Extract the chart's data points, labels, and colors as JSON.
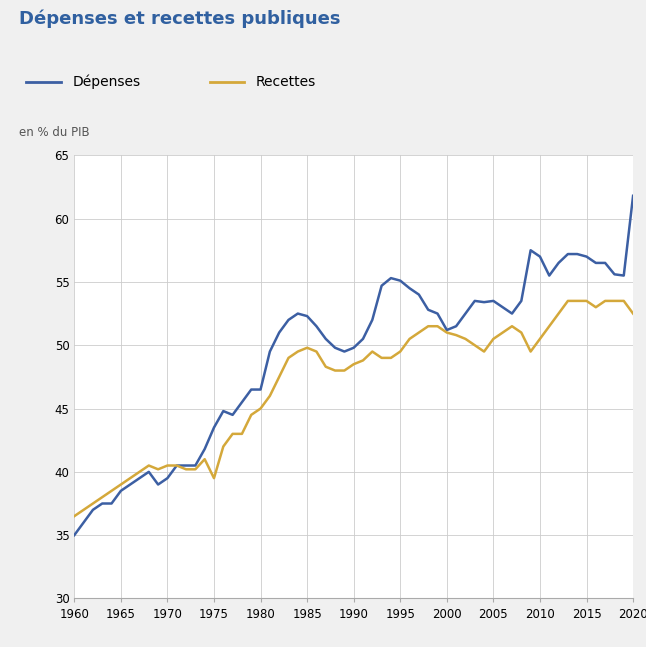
{
  "title": "Dépenses et recettes publiques",
  "unit_label": "en % du PIB",
  "background_color": "#f0f0f0",
  "plot_bg_color": "#ffffff",
  "title_color": "#3060a0",
  "title_fontsize": 13,
  "ylim": [
    30,
    65
  ],
  "xlim": [
    1960,
    2020
  ],
  "yticks": [
    30,
    35,
    40,
    45,
    50,
    55,
    60,
    65
  ],
  "xticks": [
    1960,
    1965,
    1970,
    1975,
    1980,
    1985,
    1990,
    1995,
    2000,
    2005,
    2010,
    2015,
    2020
  ],
  "depenses_color": "#3c5fa3",
  "recettes_color": "#d4a83a",
  "depenses_label": "Dépenses",
  "recettes_label": "Recettes",
  "depenses": {
    "years": [
      1960,
      1961,
      1962,
      1963,
      1964,
      1965,
      1966,
      1967,
      1968,
      1969,
      1970,
      1971,
      1972,
      1973,
      1974,
      1975,
      1976,
      1977,
      1978,
      1979,
      1980,
      1981,
      1982,
      1983,
      1984,
      1985,
      1986,
      1987,
      1988,
      1989,
      1990,
      1991,
      1992,
      1993,
      1994,
      1995,
      1996,
      1997,
      1998,
      1999,
      2000,
      2001,
      2002,
      2003,
      2004,
      2005,
      2006,
      2007,
      2008,
      2009,
      2010,
      2011,
      2012,
      2013,
      2014,
      2015,
      2016,
      2017,
      2018,
      2019,
      2020
    ],
    "values": [
      35.0,
      36.0,
      37.0,
      37.5,
      37.5,
      38.5,
      39.0,
      39.5,
      40.0,
      39.0,
      39.5,
      40.5,
      40.5,
      40.5,
      41.8,
      43.5,
      44.8,
      44.5,
      45.5,
      46.5,
      46.5,
      49.5,
      51.0,
      52.0,
      52.5,
      52.3,
      51.5,
      50.5,
      49.8,
      49.5,
      49.8,
      50.5,
      52.0,
      54.7,
      55.3,
      55.1,
      54.5,
      54.0,
      52.8,
      52.5,
      51.2,
      51.5,
      52.5,
      53.5,
      53.4,
      53.5,
      53.0,
      52.5,
      53.5,
      57.5,
      57.0,
      55.5,
      56.5,
      57.2,
      57.2,
      57.0,
      56.5,
      56.5,
      55.6,
      55.5,
      61.8
    ]
  },
  "recettes": {
    "years": [
      1960,
      1961,
      1962,
      1963,
      1964,
      1965,
      1966,
      1967,
      1968,
      1969,
      1970,
      1971,
      1972,
      1973,
      1974,
      1975,
      1976,
      1977,
      1978,
      1979,
      1980,
      1981,
      1982,
      1983,
      1984,
      1985,
      1986,
      1987,
      1988,
      1989,
      1990,
      1991,
      1992,
      1993,
      1994,
      1995,
      1996,
      1997,
      1998,
      1999,
      2000,
      2001,
      2002,
      2003,
      2004,
      2005,
      2006,
      2007,
      2008,
      2009,
      2010,
      2011,
      2012,
      2013,
      2014,
      2015,
      2016,
      2017,
      2018,
      2019,
      2020
    ],
    "values": [
      36.5,
      37.0,
      37.5,
      38.0,
      38.5,
      39.0,
      39.5,
      40.0,
      40.5,
      40.2,
      40.5,
      40.5,
      40.2,
      40.2,
      41.0,
      39.5,
      42.0,
      43.0,
      43.0,
      44.5,
      45.0,
      46.0,
      47.5,
      49.0,
      49.5,
      49.8,
      49.5,
      48.3,
      48.0,
      48.0,
      48.5,
      48.8,
      49.5,
      49.0,
      49.0,
      49.5,
      50.5,
      51.0,
      51.5,
      51.5,
      51.0,
      50.8,
      50.5,
      50.0,
      49.5,
      50.5,
      51.0,
      51.5,
      51.0,
      49.5,
      50.5,
      51.5,
      52.5,
      53.5,
      53.5,
      53.5,
      53.0,
      53.5,
      53.5,
      53.5,
      52.5
    ]
  }
}
